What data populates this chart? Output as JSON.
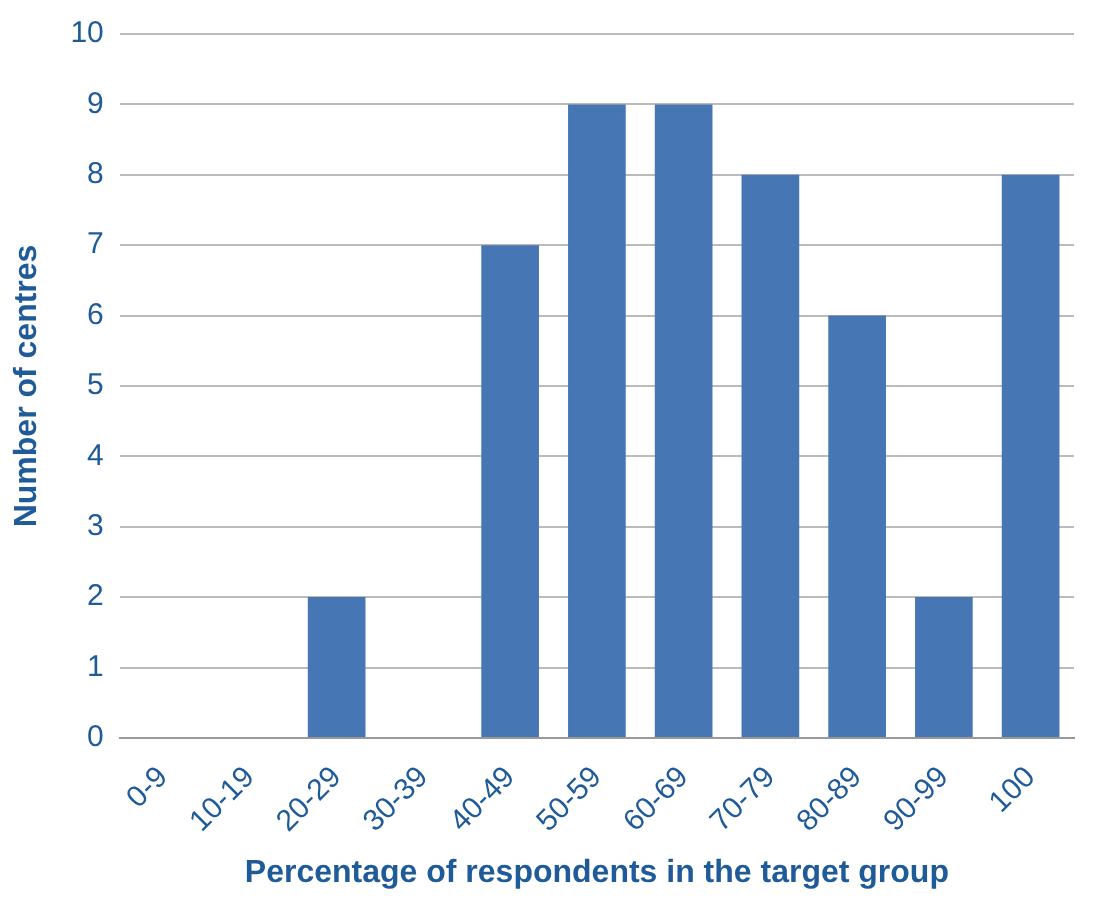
{
  "chart_data": {
    "type": "bar",
    "xlabel": "Percentage of respondents in the target group",
    "ylabel": "Number of centres",
    "categories": [
      "0-9",
      "10-19",
      "20-29",
      "30-39",
      "40-49",
      "50-59",
      "60-69",
      "70-79",
      "80-89",
      "90-99",
      "100"
    ],
    "values": [
      0,
      0,
      2,
      0,
      7,
      9,
      9,
      8,
      6,
      2,
      8
    ],
    "color": "#4677b4",
    "ylim": [
      0,
      10
    ],
    "yticks": [
      0,
      1,
      2,
      3,
      4,
      5,
      6,
      7,
      8,
      9,
      10
    ],
    "grid": "y",
    "legend": false
  }
}
